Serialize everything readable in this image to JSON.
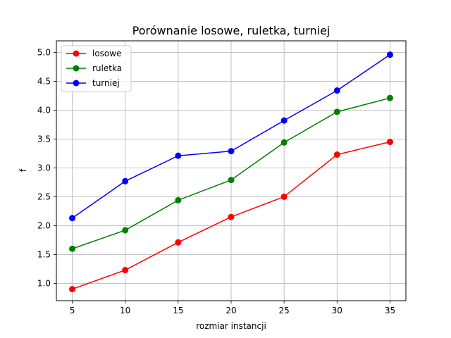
{
  "chart_data": {
    "type": "line",
    "title": "Porównanie losowe, ruletka, turniej",
    "xlabel": "rozmiar instancji",
    "ylabel": "f",
    "x": [
      5,
      10,
      15,
      20,
      25,
      30,
      35
    ],
    "xlim": [
      3.5,
      36.5
    ],
    "ylim": [
      0.7,
      5.2
    ],
    "xticks": [
      5,
      10,
      15,
      20,
      25,
      30,
      35
    ],
    "yticks": [
      1.0,
      1.5,
      2.0,
      2.5,
      3.0,
      3.5,
      4.0,
      4.5,
      5.0
    ],
    "grid": true,
    "legend_position": "top-left",
    "series": [
      {
        "name": "losowe",
        "color": "#ff0000",
        "values": [
          0.9,
          1.23,
          1.71,
          2.15,
          2.5,
          3.23,
          3.45
        ]
      },
      {
        "name": "ruletka",
        "color": "#008000",
        "values": [
          1.6,
          1.92,
          2.44,
          2.79,
          3.44,
          3.97,
          4.21
        ]
      },
      {
        "name": "turniej",
        "color": "#0000ff",
        "values": [
          2.13,
          2.77,
          3.21,
          3.29,
          3.82,
          4.34,
          4.96
        ]
      }
    ]
  }
}
